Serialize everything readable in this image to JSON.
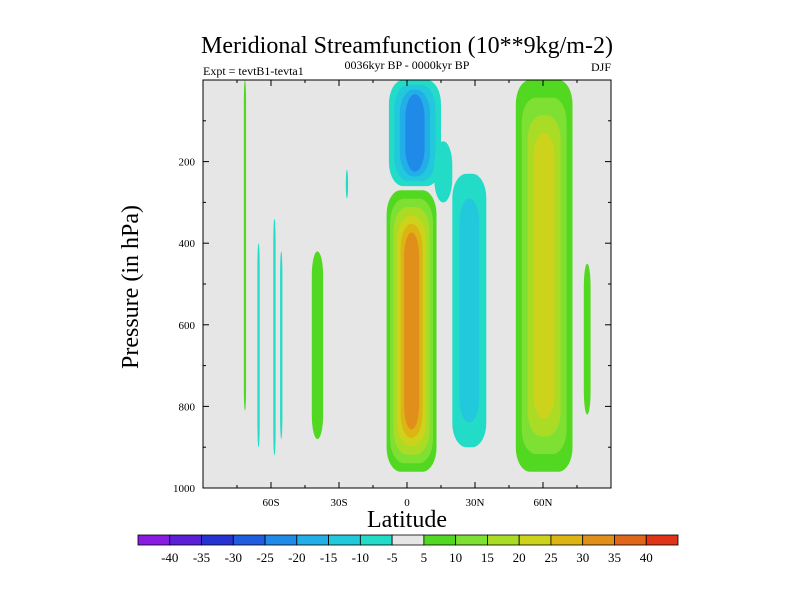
{
  "chart_data": {
    "type": "heatmap",
    "title": "Meridional Streamfunction (10**9kg/m-2)",
    "subtitle": "0036kyr BP - 0000kyr BP",
    "left_label": "Expt = tevtB1-tevta1",
    "right_label": "DJF",
    "xlabel": "Latitude",
    "ylabel": "Pressure (in hPa)",
    "xlim": [
      -90,
      90
    ],
    "ylim": [
      1000,
      0
    ],
    "x_ticks": [
      {
        "value": -60,
        "label": "60S"
      },
      {
        "value": -30,
        "label": "30S"
      },
      {
        "value": 0,
        "label": "0"
      },
      {
        "value": 30,
        "label": "30N"
      },
      {
        "value": 60,
        "label": "60N"
      }
    ],
    "y_ticks": [
      {
        "value": 200,
        "label": "200"
      },
      {
        "value": 400,
        "label": "400"
      },
      {
        "value": 600,
        "label": "600"
      },
      {
        "value": 800,
        "label": "800"
      },
      {
        "value": 1000,
        "label": "1000"
      }
    ],
    "colorbar": {
      "labels": [
        "-40",
        "-35",
        "-30",
        "-25",
        "-20",
        "-15",
        "-10",
        "-5",
        "5",
        "10",
        "15",
        "20",
        "25",
        "30",
        "35",
        "40"
      ],
      "colors": [
        "#8a1be2",
        "#5a1fd6",
        "#2632d2",
        "#1f5ce0",
        "#1f8ae8",
        "#22aee6",
        "#22c8dc",
        "#22dcc8",
        "#e6e6e6",
        "#52d820",
        "#7ee032",
        "#aadc26",
        "#cdd21a",
        "#dcb414",
        "#e0901a",
        "#e0661a",
        "#e03418"
      ]
    },
    "features": [
      {
        "name": "thin-band-70s",
        "lat": [
          -72,
          -71
        ],
        "p": [
          0,
          810
        ],
        "value": 7
      },
      {
        "name": "thin-band-58s",
        "lat": [
          -59,
          -58
        ],
        "p": [
          340,
          920
        ],
        "value": -7
      },
      {
        "name": "thin-band-66s",
        "lat": [
          -66,
          -65
        ],
        "p": [
          400,
          900
        ],
        "value": -7
      },
      {
        "name": "thin-band-55s",
        "lat": [
          -56,
          -55
        ],
        "p": [
          420,
          880
        ],
        "value": -7
      },
      {
        "name": "band-40s",
        "lat": [
          -42,
          -37
        ],
        "p": [
          420,
          880
        ],
        "value": 7
      },
      {
        "name": "spot-25s",
        "lat": [
          -27,
          -26
        ],
        "p": [
          220,
          290
        ],
        "value": -7
      },
      {
        "name": "upper-cell-5n",
        "lat": [
          -8,
          15
        ],
        "p": [
          0,
          260
        ],
        "value": -22
      },
      {
        "name": "main-cell-equator",
        "lat": [
          -9,
          13
        ],
        "p": [
          270,
          960
        ],
        "value": 34
      },
      {
        "name": "cell-25n",
        "lat": [
          20,
          35
        ],
        "p": [
          230,
          900
        ],
        "value": -14
      },
      {
        "name": "band-15n",
        "lat": [
          12,
          20
        ],
        "p": [
          150,
          300
        ],
        "value": -8
      },
      {
        "name": "cell-60n",
        "lat": [
          48,
          73
        ],
        "p": [
          0,
          960
        ],
        "value": 22
      },
      {
        "name": "band-80n",
        "lat": [
          78,
          81
        ],
        "p": [
          450,
          820
        ],
        "value": 7
      }
    ]
  }
}
